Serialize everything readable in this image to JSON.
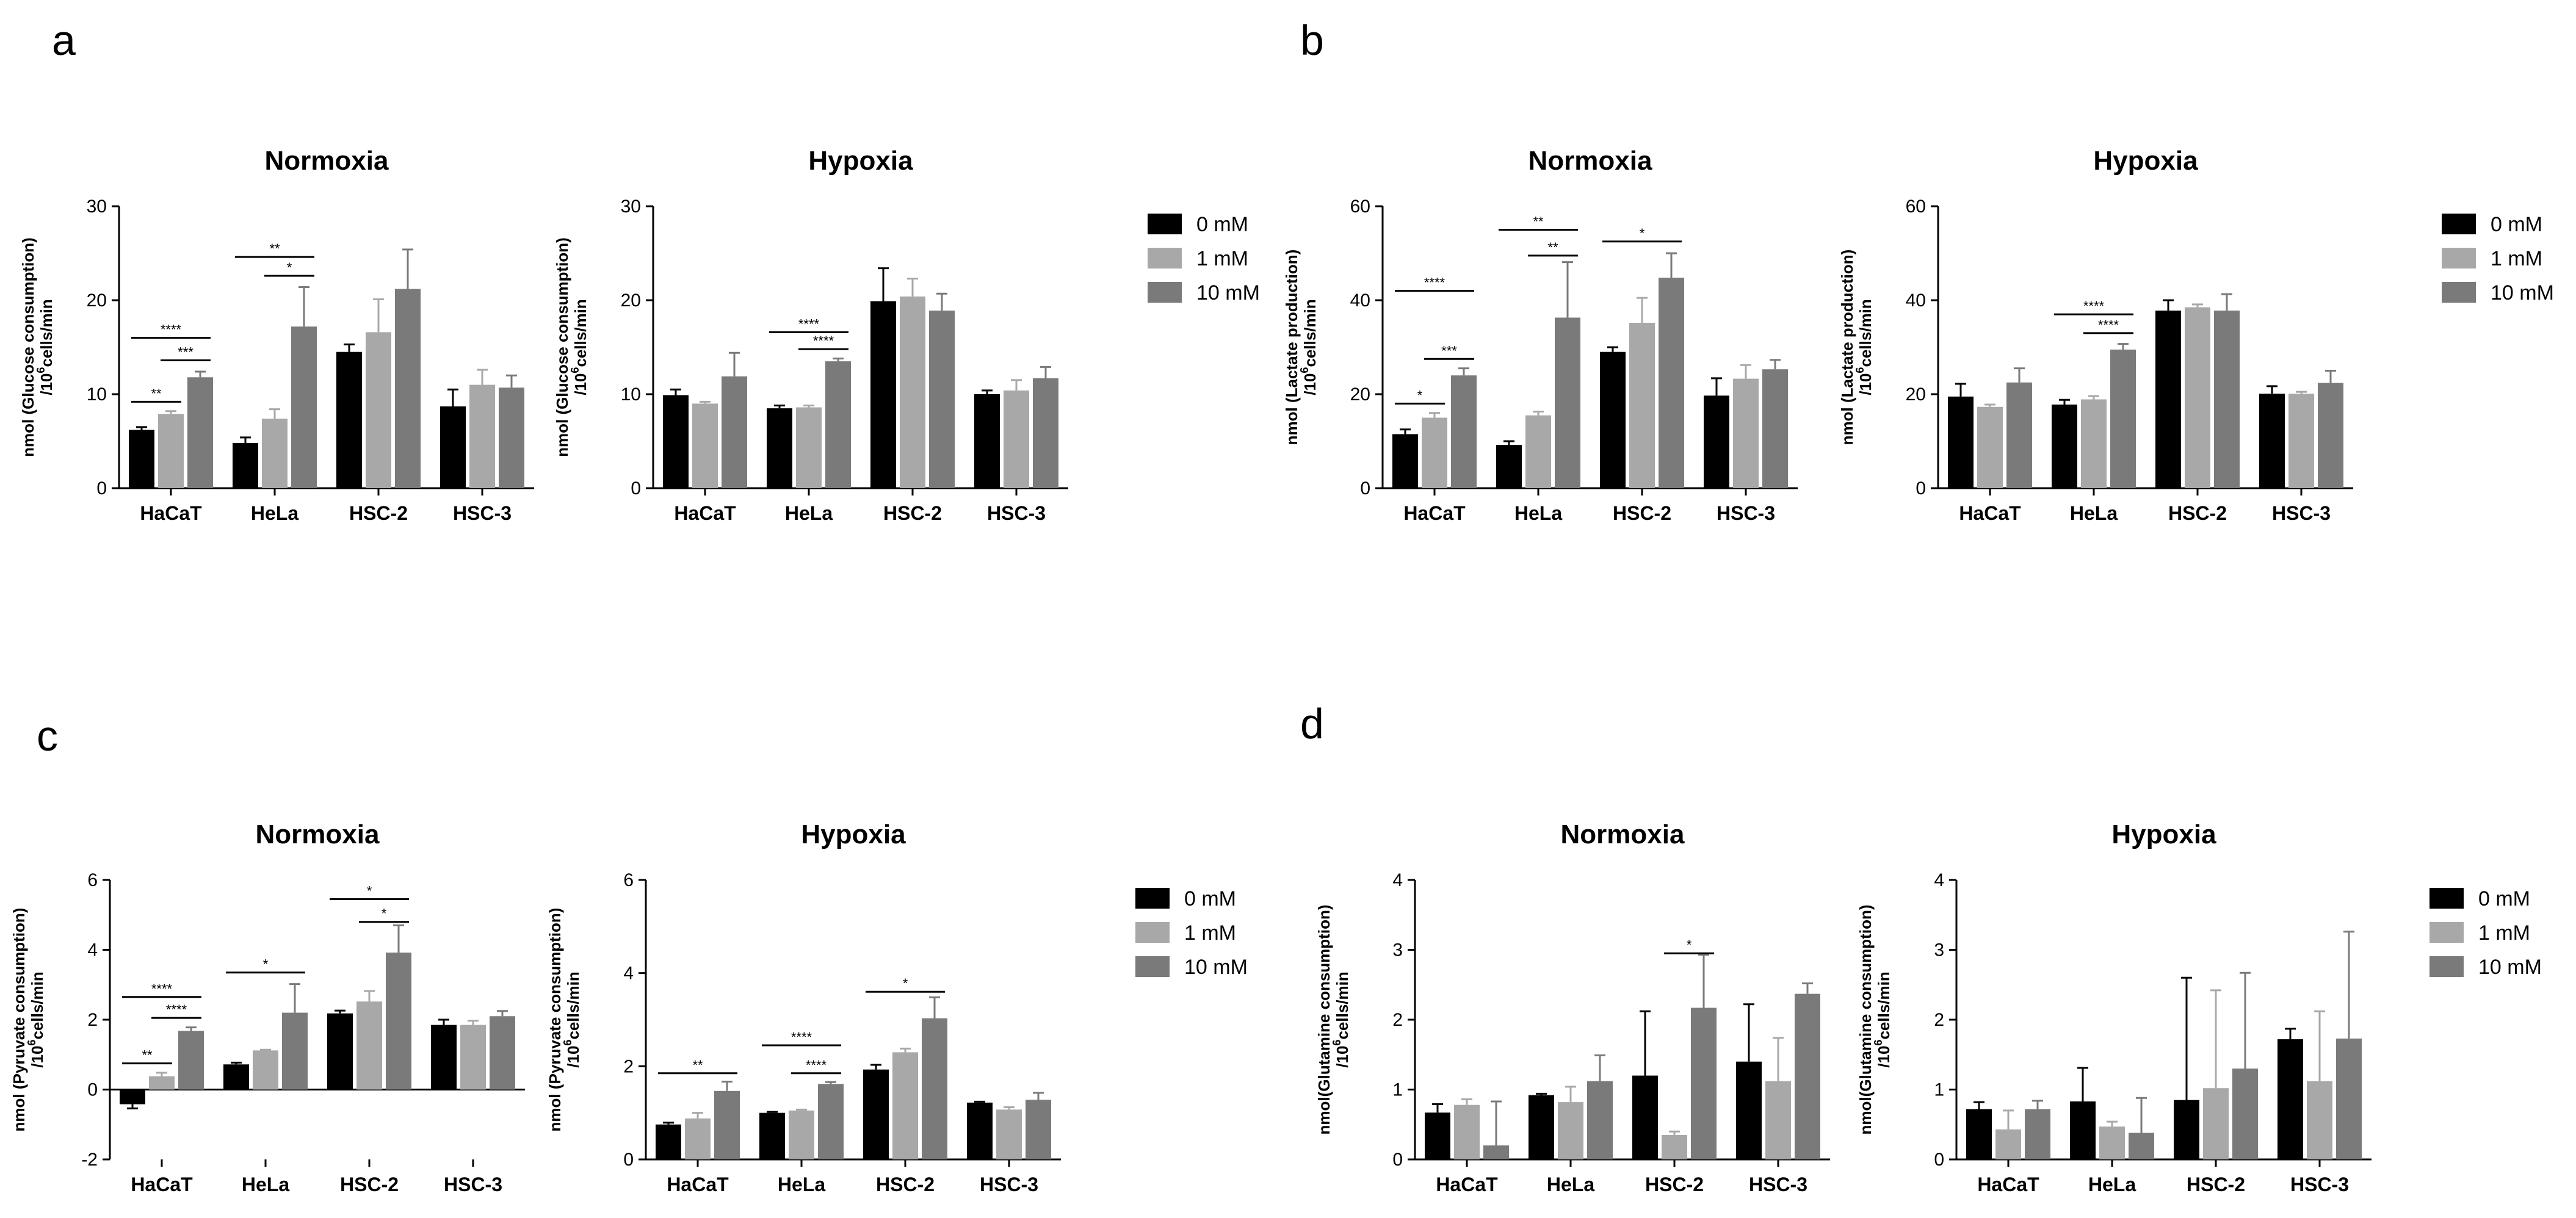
{
  "colors": {
    "c0": "#000000",
    "c1": "#a8a8a8",
    "c2": "#7a7a7a"
  },
  "legend": {
    "labels": [
      "0 mM",
      "1 mM",
      "10 mM"
    ]
  },
  "chart_data": [
    {
      "panel": "a",
      "letter": "a",
      "title": "Normoxia",
      "type": "bar",
      "ylabel": [
        "nmol (Glucose consumption)",
        "/10^6cells/min"
      ],
      "ylim": [
        0,
        30
      ],
      "yticks": [
        0,
        10,
        20,
        30
      ],
      "categories": [
        "HaCaT",
        "HeLa",
        "HSC-2",
        "HSC-3"
      ],
      "series": [
        {
          "name": "0 mM",
          "values": [
            6.2,
            4.8,
            14.5,
            8.7
          ],
          "errors": [
            0.3,
            0.6,
            0.8,
            1.8
          ]
        },
        {
          "name": "1 mM",
          "values": [
            7.9,
            7.4,
            16.6,
            11.0
          ],
          "errors": [
            0.3,
            1.0,
            3.5,
            1.6
          ]
        },
        {
          "name": "10 mM",
          "values": [
            11.8,
            17.2,
            21.2,
            10.7
          ],
          "errors": [
            0.6,
            4.2,
            4.2,
            1.3
          ]
        }
      ],
      "sig": [
        {
          "g": 0,
          "s1": 0,
          "s2": 1,
          "y": 9.2,
          "label": "**"
        },
        {
          "g": 0,
          "s1": 1,
          "s2": 2,
          "y": 13.6,
          "label": "***"
        },
        {
          "g": 0,
          "s1": 0,
          "s2": 2,
          "y": 16.0,
          "label": "****"
        },
        {
          "g": 1,
          "s1": 1,
          "s2": 2,
          "y": 22.6,
          "label": "*"
        },
        {
          "g": 1,
          "s1": 0,
          "s2": 2,
          "y": 24.6,
          "label": "**"
        }
      ]
    },
    {
      "panel": "a2",
      "letter": "",
      "title": "Hypoxia",
      "type": "bar",
      "ylabel": [
        "nmol (Glucose consumption)",
        "/10^6cells/min"
      ],
      "ylim": [
        0,
        30
      ],
      "yticks": [
        0,
        10,
        20,
        30
      ],
      "categories": [
        "HaCaT",
        "HeLa",
        "HSC-2",
        "HSC-3"
      ],
      "series": [
        {
          "name": "0 mM",
          "values": [
            9.9,
            8.5,
            19.9,
            10.0
          ],
          "errors": [
            0.6,
            0.3,
            3.5,
            0.4
          ]
        },
        {
          "name": "1 mM",
          "values": [
            9.0,
            8.6,
            20.4,
            10.4
          ],
          "errors": [
            0.2,
            0.2,
            1.9,
            1.1
          ]
        },
        {
          "name": "10 mM",
          "values": [
            11.9,
            13.5,
            18.9,
            11.7
          ],
          "errors": [
            2.5,
            0.3,
            1.8,
            1.2
          ]
        }
      ],
      "sig": [
        {
          "g": 1,
          "s1": 1,
          "s2": 2,
          "y": 14.8,
          "label": "****"
        },
        {
          "g": 1,
          "s1": 0,
          "s2": 2,
          "y": 16.6,
          "label": "****"
        }
      ]
    },
    {
      "panel": "b",
      "letter": "b",
      "title": "Normoxia",
      "type": "bar",
      "ylabel": [
        "nmol (Lactate production)",
        "/10^6cells/min"
      ],
      "ylim": [
        0,
        60
      ],
      "yticks": [
        0,
        20,
        40,
        60
      ],
      "categories": [
        "HaCaT",
        "HeLa",
        "HSC-2",
        "HSC-3"
      ],
      "series": [
        {
          "name": "0 mM",
          "values": [
            11.5,
            9.2,
            29.0,
            19.7
          ],
          "errors": [
            1.0,
            0.8,
            1.0,
            3.7
          ]
        },
        {
          "name": "1 mM",
          "values": [
            15.0,
            15.5,
            35.2,
            23.3
          ],
          "errors": [
            1.0,
            0.8,
            5.3,
            2.9
          ]
        },
        {
          "name": "10 mM",
          "values": [
            24.0,
            36.3,
            44.8,
            25.3
          ],
          "errors": [
            1.5,
            11.8,
            5.2,
            2.0
          ]
        }
      ],
      "sig": [
        {
          "g": 0,
          "s1": 0,
          "s2": 1,
          "y": 18.0,
          "label": "*"
        },
        {
          "g": 0,
          "s1": 1,
          "s2": 2,
          "y": 27.5,
          "label": "***"
        },
        {
          "g": 0,
          "s1": 0,
          "s2": 2,
          "y": 42.0,
          "label": "****"
        },
        {
          "g": 1,
          "s1": 1,
          "s2": 2,
          "y": 49.5,
          "label": "**"
        },
        {
          "g": 1,
          "s1": 0,
          "s2": 2,
          "y": 55.0,
          "label": "**"
        },
        {
          "g": 2,
          "s1": 0,
          "s2": 2,
          "y": 52.5,
          "label": "*"
        }
      ]
    },
    {
      "panel": "b2",
      "letter": "",
      "title": "Hypoxia",
      "type": "bar",
      "ylabel": [
        "nmol (Lactate production)",
        "/10^6cells/min"
      ],
      "ylim": [
        0,
        60
      ],
      "yticks": [
        0,
        20,
        40,
        60
      ],
      "categories": [
        "HaCaT",
        "HeLa",
        "HSC-2",
        "HSC-3"
      ],
      "series": [
        {
          "name": "0 mM",
          "values": [
            19.5,
            17.8,
            37.8,
            20.1
          ],
          "errors": [
            2.7,
            1.0,
            2.2,
            1.6
          ]
        },
        {
          "name": "1 mM",
          "values": [
            17.3,
            18.9,
            38.5,
            20.1
          ],
          "errors": [
            0.5,
            0.7,
            0.6,
            0.4
          ]
        },
        {
          "name": "10 mM",
          "values": [
            22.5,
            29.5,
            37.8,
            22.4
          ],
          "errors": [
            3.0,
            1.2,
            3.5,
            2.6
          ]
        }
      ],
      "sig": [
        {
          "g": 1,
          "s1": 1,
          "s2": 2,
          "y": 33.0,
          "label": "****"
        },
        {
          "g": 1,
          "s1": 0,
          "s2": 2,
          "y": 37.0,
          "label": "****"
        }
      ]
    },
    {
      "panel": "c",
      "letter": "c",
      "title": "Normoxia",
      "type": "bar",
      "ylabel": [
        "nmol (Pyruvate consumption)",
        "/10^6cells/min"
      ],
      "ylim": [
        -2,
        6
      ],
      "yticks": [
        -2,
        0,
        2,
        4,
        6
      ],
      "categories": [
        "HaCaT",
        "HeLa",
        "HSC-2",
        "HSC-3"
      ],
      "series": [
        {
          "name": "0 mM",
          "values": [
            -0.42,
            0.72,
            2.18,
            1.85
          ],
          "errors": [
            0.12,
            0.05,
            0.08,
            0.15
          ]
        },
        {
          "name": "1 mM",
          "values": [
            0.38,
            1.12,
            2.52,
            1.85
          ],
          "errors": [
            0.1,
            0.02,
            0.3,
            0.12
          ]
        },
        {
          "name": "10 mM",
          "values": [
            1.68,
            2.2,
            3.92,
            2.1
          ],
          "errors": [
            0.1,
            0.82,
            0.78,
            0.15
          ]
        }
      ],
      "sig": [
        {
          "g": 0,
          "s1": 0,
          "s2": 1,
          "y": 0.75,
          "label": "**"
        },
        {
          "g": 0,
          "s1": 1,
          "s2": 2,
          "y": 2.05,
          "label": "****"
        },
        {
          "g": 0,
          "s1": 0,
          "s2": 2,
          "y": 2.65,
          "label": "****"
        },
        {
          "g": 1,
          "s1": 0,
          "s2": 2,
          "y": 3.35,
          "label": "*"
        },
        {
          "g": 2,
          "s1": 1,
          "s2": 2,
          "y": 4.8,
          "label": "*"
        },
        {
          "g": 2,
          "s1": 0,
          "s2": 2,
          "y": 5.45,
          "label": "*"
        }
      ]
    },
    {
      "panel": "c2",
      "letter": "",
      "title": "Hypoxia",
      "type": "bar",
      "ylabel": [
        "nmol (Pyruvate consumption)",
        "/10^6cells/min"
      ],
      "ylim": [
        0,
        6
      ],
      "yticks": [
        0,
        2,
        4,
        6
      ],
      "categories": [
        "HaCaT",
        "HeLa",
        "HSC-2",
        "HSC-3"
      ],
      "series": [
        {
          "name": "0 mM",
          "values": [
            0.75,
            1.0,
            1.93,
            1.22
          ],
          "errors": [
            0.04,
            0.02,
            0.1,
            0.02
          ]
        },
        {
          "name": "1 mM",
          "values": [
            0.88,
            1.05,
            2.3,
            1.07
          ],
          "errors": [
            0.12,
            0.02,
            0.08,
            0.05
          ]
        },
        {
          "name": "10 mM",
          "values": [
            1.47,
            1.62,
            3.03,
            1.28
          ],
          "errors": [
            0.2,
            0.04,
            0.45,
            0.15
          ]
        }
      ],
      "sig": [
        {
          "g": 0,
          "s1": 0,
          "s2": 2,
          "y": 1.85,
          "label": "**"
        },
        {
          "g": 1,
          "s1": 1,
          "s2": 2,
          "y": 1.85,
          "label": "****"
        },
        {
          "g": 1,
          "s1": 0,
          "s2": 2,
          "y": 2.45,
          "label": "****"
        },
        {
          "g": 2,
          "s1": 0,
          "s2": 2,
          "y": 3.6,
          "label": "*"
        }
      ]
    },
    {
      "panel": "d",
      "letter": "d",
      "title": "Normoxia",
      "type": "bar",
      "ylabel": [
        "nmol(Glutamine consumption)",
        "/10^6cells/min"
      ],
      "ylim": [
        0,
        4
      ],
      "yticks": [
        0,
        1,
        2,
        3,
        4
      ],
      "categories": [
        "HaCaT",
        "HeLa",
        "HSC-2",
        "HSC-3"
      ],
      "series": [
        {
          "name": "0 mM",
          "values": [
            0.67,
            0.92,
            1.2,
            1.4
          ],
          "errors": [
            0.12,
            0.02,
            0.92,
            0.82
          ]
        },
        {
          "name": "1 mM",
          "values": [
            0.78,
            0.82,
            0.35,
            1.12
          ],
          "errors": [
            0.08,
            0.22,
            0.05,
            0.62
          ]
        },
        {
          "name": "10 mM",
          "values": [
            0.2,
            1.12,
            2.17,
            2.37
          ],
          "errors": [
            0.63,
            0.37,
            0.76,
            0.15
          ]
        }
      ],
      "sig": [
        {
          "g": 2,
          "s1": 1,
          "s2": 2,
          "y": 2.95,
          "label": "*"
        }
      ]
    },
    {
      "panel": "d2",
      "letter": "",
      "title": "Hypoxia",
      "type": "bar",
      "ylabel": [
        "nmol(Glutamine consumption)",
        "/10^6cells/min"
      ],
      "ylim": [
        0,
        4
      ],
      "yticks": [
        0,
        1,
        2,
        3,
        4
      ],
      "categories": [
        "HaCaT",
        "HeLa",
        "HSC-2",
        "HSC-3"
      ],
      "series": [
        {
          "name": "0 mM",
          "values": [
            0.72,
            0.83,
            0.85,
            1.72
          ],
          "errors": [
            0.1,
            0.48,
            1.75,
            0.15
          ]
        },
        {
          "name": "1 mM",
          "values": [
            0.43,
            0.47,
            1.02,
            1.12
          ],
          "errors": [
            0.27,
            0.07,
            1.4,
            1.0
          ]
        },
        {
          "name": "10 mM",
          "values": [
            0.72,
            0.38,
            1.3,
            1.73
          ],
          "errors": [
            0.12,
            0.5,
            1.37,
            1.53
          ]
        }
      ],
      "sig": []
    }
  ]
}
